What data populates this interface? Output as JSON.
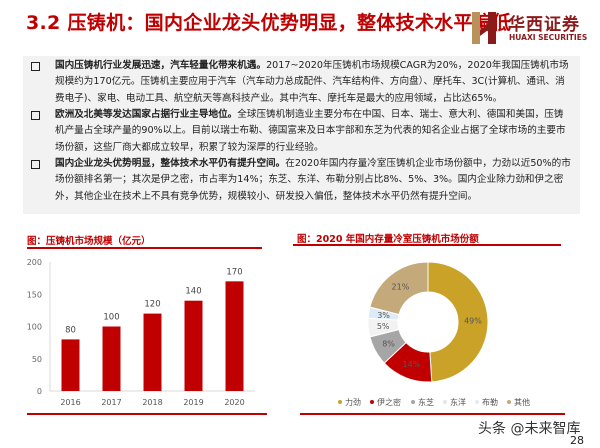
{
  "title": "3.2 压铸机：国内企业龙头优势明显，整体技术水平偏低",
  "logo": {
    "cn": "华西证券",
    "en": "HUAXI SECURITIES",
    "color": "#8B1A1A"
  },
  "bullets": [
    {
      "bold": "国内压铸机行业发展迅速，汽车轻量化带来机遇。",
      "text": "2017~2020年压铸机市场规模CAGR为20%，2020年我国压铸机市场规模约为170亿元。压铸机主要应用于汽车（汽车动力总成配件、汽车结构件、方向盘）、摩托车、3C(计算机、通讯、消费电子)、家电、电动工具、航空航天等高科技产业。其中汽车、摩托车是最大的应用领域，占比达65%。"
    },
    {
      "bold": "欧洲及北美等发达国家占据行业主导地位。",
      "text": "全球压铸机制造业主要分布在中国、日本、瑞士、意大利、德国和美国，压铸机产量占全球产量的90%以上。目前以瑞士布勒、德国富来及日本宇部和东芝为代表的知名企业占据了全球市场的主要市场份额，这些厂商大都成立较早，积累了较为深厚的行业经验。"
    },
    {
      "bold": "国内企业龙头优势明显，整体技术水平仍有提升空间。",
      "text": "在2020年国内存量冷室压铸机企业市场份额中，力劲以近50%的市场份额排名第一；其次是伊之密，市占率为14%；东芝、东洋、布勒分别占比8%、5%、3%。国内企业除力劲和伊之密外，其他企业在技术上不具有竞争优势，规模较小、研发投入偏低，整体技术水平仍然有提升空间。"
    }
  ],
  "chart_data": [
    {
      "type": "bar",
      "title": "图：压铸机市场规模（亿元）",
      "categories": [
        "2016",
        "2017",
        "2018",
        "2019",
        "2020"
      ],
      "values": [
        80,
        100,
        120,
        140,
        170
      ],
      "ylim": [
        0,
        200
      ],
      "yticks": [
        "0",
        "50",
        "100",
        "150",
        "200"
      ],
      "grid": false,
      "color": "#C00000"
    },
    {
      "type": "pie",
      "title": "图：2020 年国内存量冷室压铸机市场份额",
      "donut": true,
      "legend_position": "bottom",
      "slices": [
        {
          "label": "力劲",
          "value": 49,
          "display": "49%",
          "color": "#C9A227"
        },
        {
          "label": "伊之密",
          "value": 14,
          "display": "14%",
          "color": "#C00000"
        },
        {
          "label": "东芝",
          "value": 8,
          "display": "8%",
          "color": "#A6A6A6"
        },
        {
          "label": "东洋",
          "value": 5,
          "display": "5%",
          "color": "#F2F2F2"
        },
        {
          "label": "布勒",
          "value": 3,
          "display": "3%",
          "color": "#DDEBF7"
        },
        {
          "label": "其他",
          "value": 21,
          "display": "21%",
          "color": "#C4A97A"
        }
      ]
    }
  ],
  "watermark": "头条 @未来智库",
  "page_number": "28"
}
